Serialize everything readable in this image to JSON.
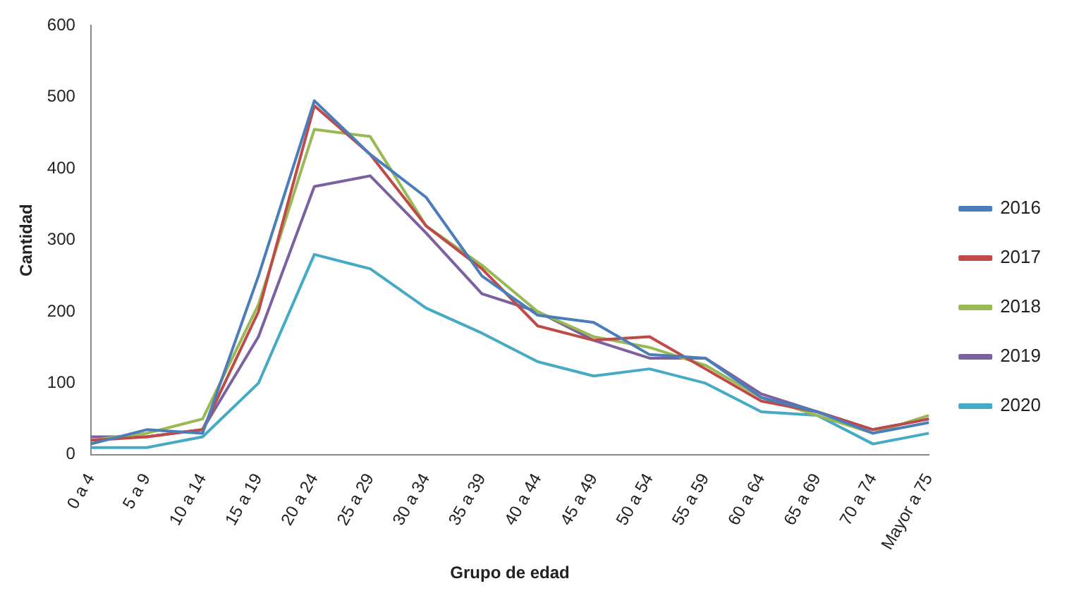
{
  "chart_data": {
    "type": "line",
    "xlabel": "Grupo de edad",
    "ylabel": "Cantidad",
    "categories": [
      "0 a 4",
      "5 a 9",
      "10 a 14",
      "15 a 19",
      "20 a 24",
      "25 a 29",
      "30 a 34",
      "35 a 39",
      "40 a 44",
      "45 a 49",
      "50 a 54",
      "55 a 59",
      "60 a 64",
      "65 a 69",
      "70 a 74",
      "Mayor a 75"
    ],
    "series": [
      {
        "name": "2016",
        "color": "#4a7ebb",
        "values": [
          15,
          35,
          30,
          250,
          495,
          420,
          360,
          250,
          195,
          185,
          140,
          135,
          80,
          60,
          30,
          45
        ]
      },
      {
        "name": "2017",
        "color": "#be4b48",
        "values": [
          20,
          25,
          35,
          200,
          488,
          420,
          320,
          260,
          180,
          160,
          165,
          120,
          75,
          60,
          35,
          50
        ]
      },
      {
        "name": "2018",
        "color": "#98b954",
        "values": [
          20,
          30,
          50,
          210,
          455,
          445,
          320,
          265,
          200,
          165,
          150,
          125,
          80,
          55,
          30,
          55
        ]
      },
      {
        "name": "2019",
        "color": "#7d60a0",
        "values": [
          25,
          25,
          35,
          165,
          375,
          390,
          310,
          225,
          200,
          160,
          135,
          135,
          85,
          60,
          35,
          50
        ]
      },
      {
        "name": "2020",
        "color": "#46aac5",
        "values": [
          10,
          10,
          25,
          100,
          280,
          260,
          205,
          170,
          130,
          110,
          120,
          100,
          60,
          55,
          15,
          30
        ]
      }
    ],
    "ylim": [
      0,
      600
    ],
    "yticks": [
      0,
      100,
      200,
      300,
      400,
      500,
      600
    ],
    "grid": false,
    "legend": "right",
    "marker": "none",
    "line_style": "solid"
  }
}
